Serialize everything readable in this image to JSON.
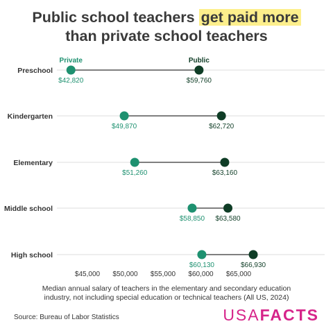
{
  "title": {
    "line1_pre": "Public school teachers ",
    "line1_highlight": "get paid more",
    "line2": "than private school teachers"
  },
  "caption": "Median annual salary of teachers in the elementary and secondary education industry, not including special education or technical teachers (All US, 2024)",
  "source": "Source: Bureau of Labor Statistics",
  "logo": {
    "part1": "USA",
    "part2": "FACTS"
  },
  "colors": {
    "private": "#1e9170",
    "public": "#0f3d26",
    "connector": "#333333",
    "grid": "#dddddd",
    "highlight": "#fdef8c",
    "brand": "#d6248a"
  },
  "chart_data": {
    "type": "dumbbell",
    "xlim": [
      40000,
      70000
    ],
    "x_ticks": [
      45000,
      50000,
      55000,
      60000,
      65000
    ],
    "x_tick_labels": [
      "$45,000",
      "$50,000",
      "$55,000",
      "$60,000",
      "$65,000"
    ],
    "series_labels": {
      "private": "Private",
      "public": "Public"
    },
    "categories": [
      "Preschool",
      "Kindergarten",
      "Elementary",
      "Middle school",
      "High school"
    ],
    "series": [
      {
        "key": "private",
        "name": "Private",
        "values": [
          42820,
          49870,
          51260,
          58850,
          60130
        ],
        "labels": [
          "$42,820",
          "$49,870",
          "$51,260",
          "$58,850",
          "$60,130"
        ]
      },
      {
        "key": "public",
        "name": "Public",
        "values": [
          59760,
          62720,
          63160,
          63580,
          66930
        ],
        "labels": [
          "$59,760",
          "$62,720",
          "$63,160",
          "$63,580",
          "$66,930"
        ]
      }
    ]
  }
}
